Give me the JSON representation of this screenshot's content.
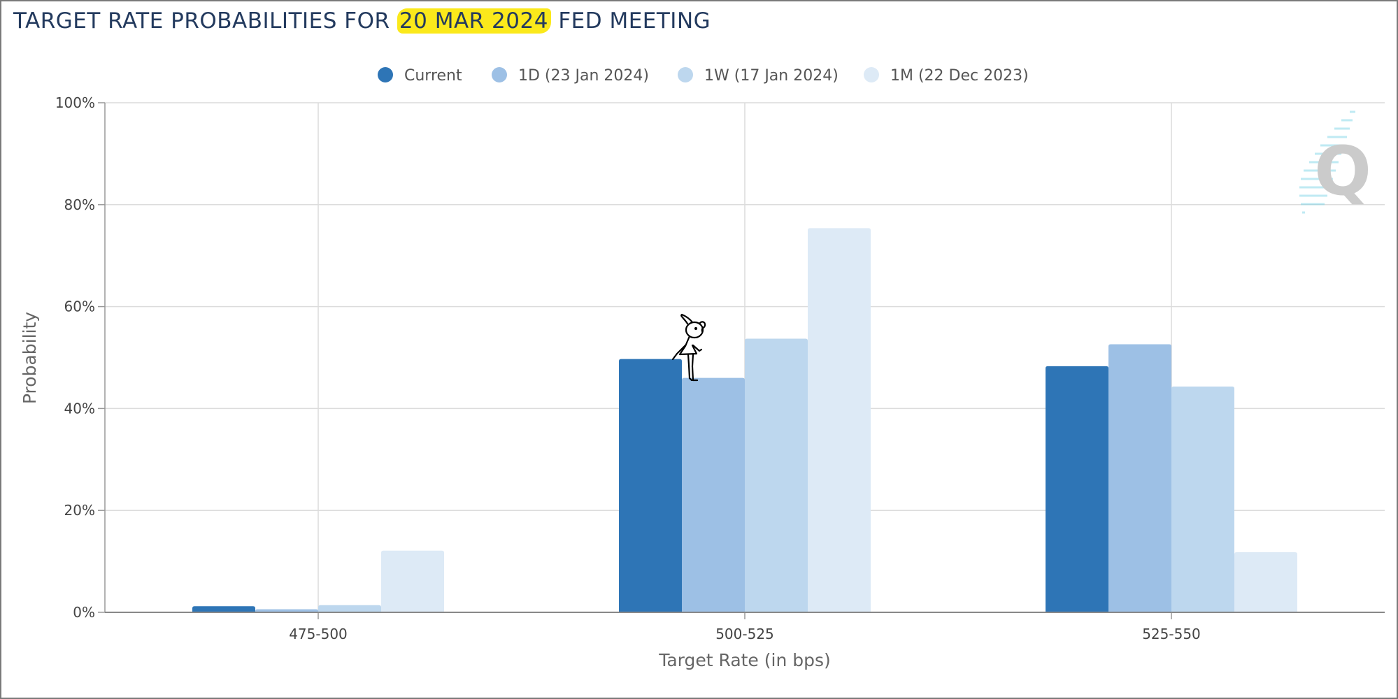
{
  "title": {
    "prefix": "TARGET RATE PROBABILITIES FOR",
    "highlight": "20 MAR 2024",
    "suffix": "FED MEETING",
    "highlight_color": "#fbe91b"
  },
  "logo": {
    "letter": "Q",
    "icon": "q-logo-icon"
  },
  "doodle": {
    "icon": "stick-figure-icon"
  },
  "chart_data": {
    "type": "bar",
    "categories": [
      "475-500",
      "500-525",
      "525-550"
    ],
    "series": [
      {
        "name": "Current",
        "color": "#2e75b6",
        "values": [
          1.2,
          49.7,
          48.3
        ]
      },
      {
        "name": "1D (23 Jan 2024)",
        "color": "#9dc0e5",
        "values": [
          0.6,
          46.0,
          52.6
        ]
      },
      {
        "name": "1W (17 Jan 2024)",
        "color": "#bdd7ee",
        "values": [
          1.4,
          53.7,
          44.3
        ]
      },
      {
        "name": "1M (22 Dec 2023)",
        "color": "#ddeaf6",
        "values": [
          12.1,
          75.4,
          11.8
        ]
      }
    ],
    "xlabel": "Target Rate (in bps)",
    "ylabel": "Probability",
    "ylim": [
      0,
      100
    ],
    "yticks": [
      "0%",
      "20%",
      "40%",
      "60%",
      "80%",
      "100%"
    ],
    "grid": true,
    "legend": "top-center"
  }
}
